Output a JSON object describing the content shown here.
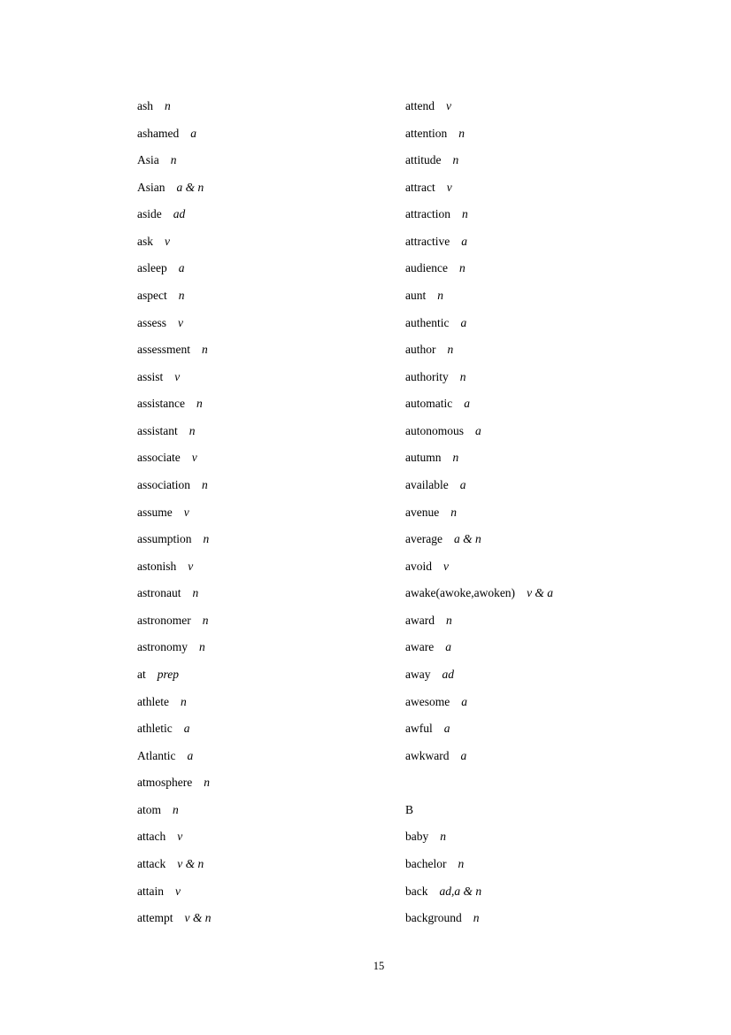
{
  "left_column": [
    {
      "word": "ash",
      "pos": "n"
    },
    {
      "word": "ashamed",
      "pos": "a"
    },
    {
      "word": "Asia",
      "pos": "n"
    },
    {
      "word": "Asian",
      "pos": "a & n"
    },
    {
      "word": "aside",
      "pos": "ad"
    },
    {
      "word": "ask",
      "pos": "v"
    },
    {
      "word": "asleep",
      "pos": "a"
    },
    {
      "word": "aspect",
      "pos": "n"
    },
    {
      "word": "assess",
      "pos": "v"
    },
    {
      "word": "assessment",
      "pos": "n"
    },
    {
      "word": "assist",
      "pos": "v"
    },
    {
      "word": "assistance",
      "pos": "n"
    },
    {
      "word": "assistant",
      "pos": "n"
    },
    {
      "word": "associate",
      "pos": "v"
    },
    {
      "word": "association",
      "pos": "n"
    },
    {
      "word": "assume",
      "pos": "v"
    },
    {
      "word": "assumption",
      "pos": "n"
    },
    {
      "word": "astonish",
      "pos": "v"
    },
    {
      "word": "astronaut",
      "pos": "n"
    },
    {
      "word": "astronomer",
      "pos": "n"
    },
    {
      "word": "astronomy",
      "pos": "n"
    },
    {
      "word": "at",
      "pos": "prep"
    },
    {
      "word": "athlete",
      "pos": "n"
    },
    {
      "word": "athletic",
      "pos": "a"
    },
    {
      "word": "Atlantic",
      "pos": "a"
    },
    {
      "word": "atmosphere",
      "pos": "n"
    },
    {
      "word": "atom",
      "pos": "n"
    },
    {
      "word": "attach",
      "pos": "v"
    },
    {
      "word": "attack",
      "pos": "v & n"
    },
    {
      "word": "attain",
      "pos": "v"
    },
    {
      "word": "attempt",
      "pos": "v & n"
    }
  ],
  "right_column": [
    {
      "word": "attend",
      "pos": "v"
    },
    {
      "word": "attention",
      "pos": "n"
    },
    {
      "word": "attitude",
      "pos": "n"
    },
    {
      "word": "attract",
      "pos": "v"
    },
    {
      "word": "attraction",
      "pos": "n"
    },
    {
      "word": "attractive",
      "pos": "a"
    },
    {
      "word": "audience",
      "pos": "n"
    },
    {
      "word": "aunt",
      "pos": "n"
    },
    {
      "word": "authentic",
      "pos": "a"
    },
    {
      "word": "author",
      "pos": "n"
    },
    {
      "word": "authority",
      "pos": "n"
    },
    {
      "word": "automatic",
      "pos": "a"
    },
    {
      "word": "autonomous",
      "pos": "a"
    },
    {
      "word": "autumn",
      "pos": "n"
    },
    {
      "word": "available",
      "pos": "a"
    },
    {
      "word": "avenue",
      "pos": "n"
    },
    {
      "word": "average",
      "pos": "a & n"
    },
    {
      "word": "avoid",
      "pos": "v"
    },
    {
      "word": "awake(awoke,awoken)",
      "pos": "v & a"
    },
    {
      "word": "award",
      "pos": "n"
    },
    {
      "word": "aware",
      "pos": "a"
    },
    {
      "word": "away",
      "pos": "ad"
    },
    {
      "word": "awesome",
      "pos": "a"
    },
    {
      "word": "awful",
      "pos": "a"
    },
    {
      "word": "awkward",
      "pos": "a"
    },
    {
      "word": "",
      "pos": ""
    },
    {
      "word": "B",
      "pos": ""
    },
    {
      "word": "baby",
      "pos": "n"
    },
    {
      "word": "bachelor",
      "pos": "n"
    },
    {
      "word": "back",
      "pos": "ad,a & n"
    },
    {
      "word": "background",
      "pos": "n"
    }
  ],
  "page_number": "15"
}
